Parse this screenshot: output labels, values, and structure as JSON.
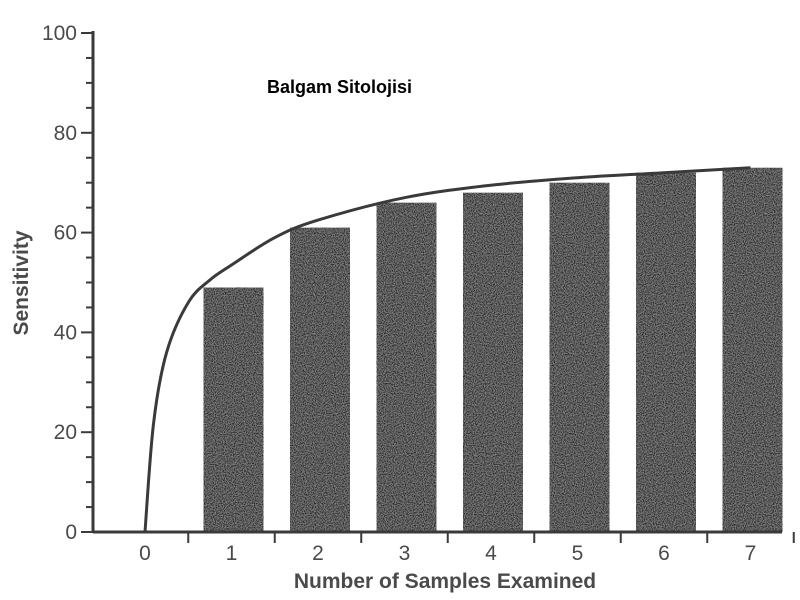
{
  "chart_data": {
    "type": "bar",
    "title": "Balgam Sitolojisi",
    "xlabel": "Number of Samples Examined",
    "ylabel": "Sensitivity",
    "x_ticks": [
      "0",
      "1",
      "2",
      "3",
      "4",
      "5",
      "6",
      "7"
    ],
    "categories": [
      "1",
      "2",
      "3",
      "4",
      "5",
      "6",
      "7"
    ],
    "values": [
      49,
      61,
      66,
      68,
      70,
      72,
      73
    ],
    "ylim": [
      0,
      100
    ],
    "y_ticks": [
      0,
      20,
      40,
      60,
      80,
      100
    ],
    "curve": {
      "x": [
        0,
        0.1,
        0.25,
        0.5,
        0.75,
        1,
        1.5,
        2,
        3,
        4,
        5,
        6,
        7
      ],
      "y": [
        0,
        22,
        36,
        46,
        50.5,
        53.5,
        59,
        62.5,
        67,
        69.5,
        71,
        72,
        73
      ]
    },
    "grid": false,
    "bar_color": "#262626",
    "axis_color": "#3a3a3a"
  }
}
